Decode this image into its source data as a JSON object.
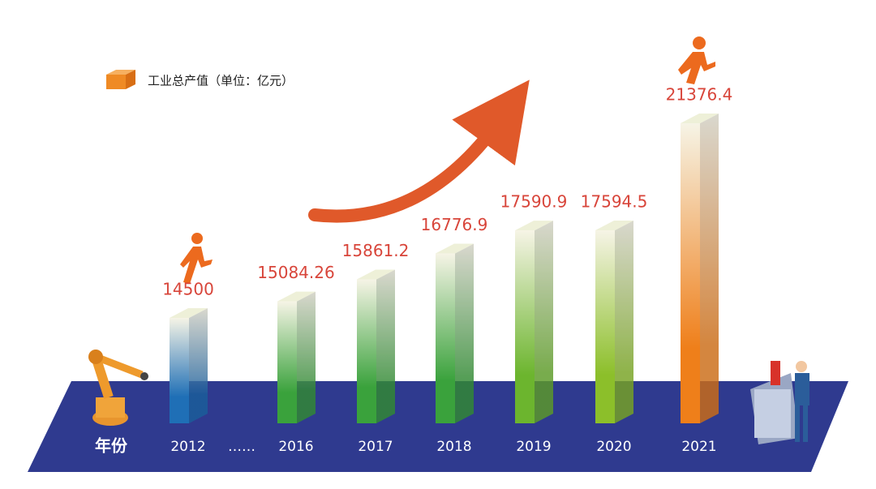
{
  "chart_data": {
    "type": "bar3d",
    "legend": "工业总产值（单位：亿元）",
    "x_label": "年份",
    "axis_break": "……",
    "categories": [
      "2012",
      "2016",
      "2017",
      "2018",
      "2019",
      "2020",
      "2021"
    ],
    "values": [
      14500,
      15084.26,
      15861.2,
      16776.9,
      17590.9,
      17594.5,
      21376.4
    ],
    "colors": [
      "#1f6fb6",
      "#3aa23c",
      "#3aa23c",
      "#3aa23c",
      "#6cb52e",
      "#8cbf2a",
      "#ef7f1a"
    ],
    "legend_color": "#ef8a24"
  }
}
